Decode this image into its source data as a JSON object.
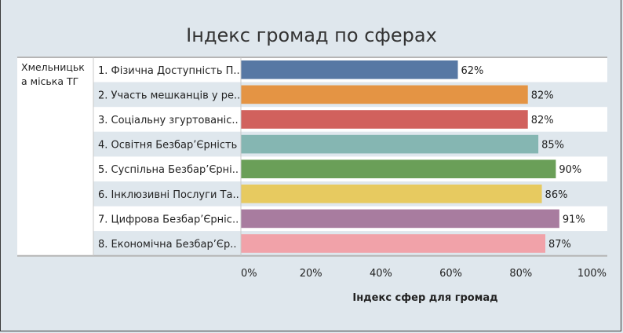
{
  "chart_data": {
    "type": "bar",
    "orientation": "horizontal",
    "title": "Індекс громад по сферах",
    "group_label": "Хмельницька міська ТГ",
    "group_label_lines": [
      "Хмельницьк",
      "а міська ТГ"
    ],
    "categories": [
      "1. Фізична Доступність П..",
      "2. Участь мешканців у ре..",
      "3. Соціальну згуртованіс..",
      "4. Освітня Безбар’Єрність",
      "5. Суспільна Безбар’Єрні..",
      "6. Інклюзивні Послуги Та..",
      "7. Цифрова Безбар’Єрніс..",
      "8. Економічна Безбар’Єр.."
    ],
    "values": [
      62,
      82,
      82,
      85,
      90,
      86,
      91,
      87
    ],
    "value_labels": [
      "62%",
      "82%",
      "82%",
      "85%",
      "90%",
      "86%",
      "91%",
      "87%"
    ],
    "colors": [
      "#5778a4",
      "#e49444",
      "#d1615d",
      "#85b6b2",
      "#6a9f58",
      "#e7ca60",
      "#a87c9f",
      "#f1a2a9"
    ],
    "xlabel": "Індекс сфер для громад",
    "xlim": [
      0,
      100
    ],
    "xticks": [
      0,
      20,
      40,
      60,
      80,
      100
    ],
    "xtick_labels": [
      "0%",
      "20%",
      "40%",
      "60%",
      "80%",
      "100%"
    ],
    "grid": false,
    "legend": "none"
  }
}
